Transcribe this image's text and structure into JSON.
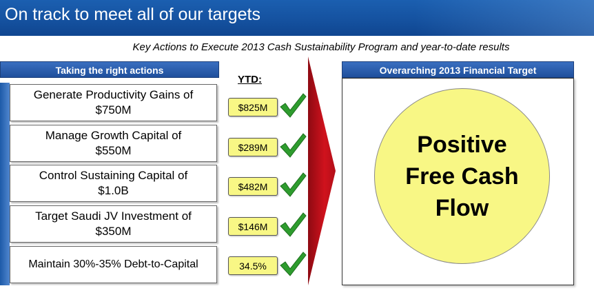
{
  "title": "On track to meet all of our targets",
  "subtitle": "Key Actions to Execute 2013 Cash Sustainability Program and year-to-date results",
  "left_header": "Taking the right actions",
  "right_header": "Overarching 2013 Financial Target",
  "ytd_label": "YTD:",
  "actions": [
    {
      "line1": "Generate Productivity Gains of",
      "line2": "$750M",
      "ytd": "$825M"
    },
    {
      "line1": "Manage Growth Capital of",
      "line2": "$550M",
      "ytd": "$289M"
    },
    {
      "line1": "Control Sustaining Capital of",
      "line2": "$1.0B",
      "ytd": "$482M"
    },
    {
      "line1": "Target Saudi JV Investment of",
      "line2": "$350M",
      "ytd": "$146M"
    },
    {
      "line1": "Maintain 30%-35% Debt-to-Capital",
      "line2": "",
      "ytd": "34.5%"
    }
  ],
  "target": {
    "line1": "Positive",
    "line2": "Free Cash",
    "line3": "Flow"
  },
  "colors": {
    "title_bar": "#1552a0",
    "header": "#2b5eae",
    "highlight": "#f8f785",
    "check": "#2e9c2e",
    "arrow": "#c4121c"
  },
  "icons": {
    "status": "checkmark-icon",
    "direction": "arrow-right-icon"
  }
}
